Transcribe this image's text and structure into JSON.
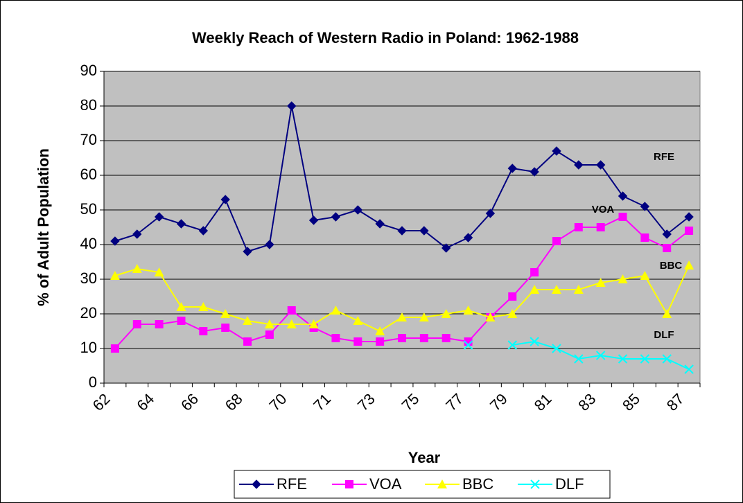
{
  "chart_data": {
    "type": "line",
    "title": "Weekly Reach of Western Radio in Poland: 1962-1988",
    "x_label": "Year",
    "y_label": "% of Adult Population",
    "categories": [
      "62",
      null,
      "64",
      null,
      "66",
      null,
      "68",
      null,
      "70",
      null,
      "71",
      null,
      "73",
      null,
      "75",
      null,
      "77",
      null,
      "79",
      null,
      "81",
      null,
      "83",
      null,
      "85",
      null,
      "87"
    ],
    "series": [
      {
        "name": "RFE",
        "color": "#000080",
        "marker": "diamond",
        "values": [
          41,
          43,
          48,
          46,
          44,
          53,
          38,
          40,
          80,
          47,
          48,
          50,
          46,
          44,
          44,
          39,
          42,
          49,
          62,
          61,
          67,
          63,
          63,
          54,
          51,
          43,
          48
        ]
      },
      {
        "name": "VOA",
        "color": "#ff00ff",
        "marker": "square",
        "values": [
          10,
          17,
          17,
          18,
          15,
          16,
          12,
          14,
          21,
          16,
          13,
          12,
          12,
          13,
          13,
          13,
          12,
          19,
          25,
          32,
          41,
          45,
          45,
          48,
          42,
          39,
          44
        ]
      },
      {
        "name": "BBC",
        "color": "#ffff00",
        "marker": "triangle",
        "values": [
          31,
          33,
          32,
          22,
          22,
          20,
          18,
          17,
          17,
          17,
          21,
          18,
          15,
          19,
          19,
          20,
          21,
          19,
          20,
          27,
          27,
          27,
          29,
          30,
          31,
          20,
          34
        ]
      },
      {
        "name": "DLF",
        "color": "#00ffff",
        "marker": "x",
        "values": [
          null,
          null,
          null,
          null,
          null,
          null,
          null,
          null,
          null,
          null,
          null,
          null,
          null,
          null,
          null,
          null,
          11,
          null,
          11,
          12,
          10,
          7,
          8,
          7,
          7,
          7,
          4
        ]
      }
    ],
    "annotations": [
      "RFE",
      "VOA",
      "BBC",
      "DLF"
    ],
    "ylim": [
      0,
      90
    ],
    "yticks": [
      0,
      10,
      20,
      30,
      40,
      50,
      60,
      70,
      80,
      90
    ],
    "grid": true,
    "plot_background": "#c0c0c0",
    "legend": "bottom"
  }
}
